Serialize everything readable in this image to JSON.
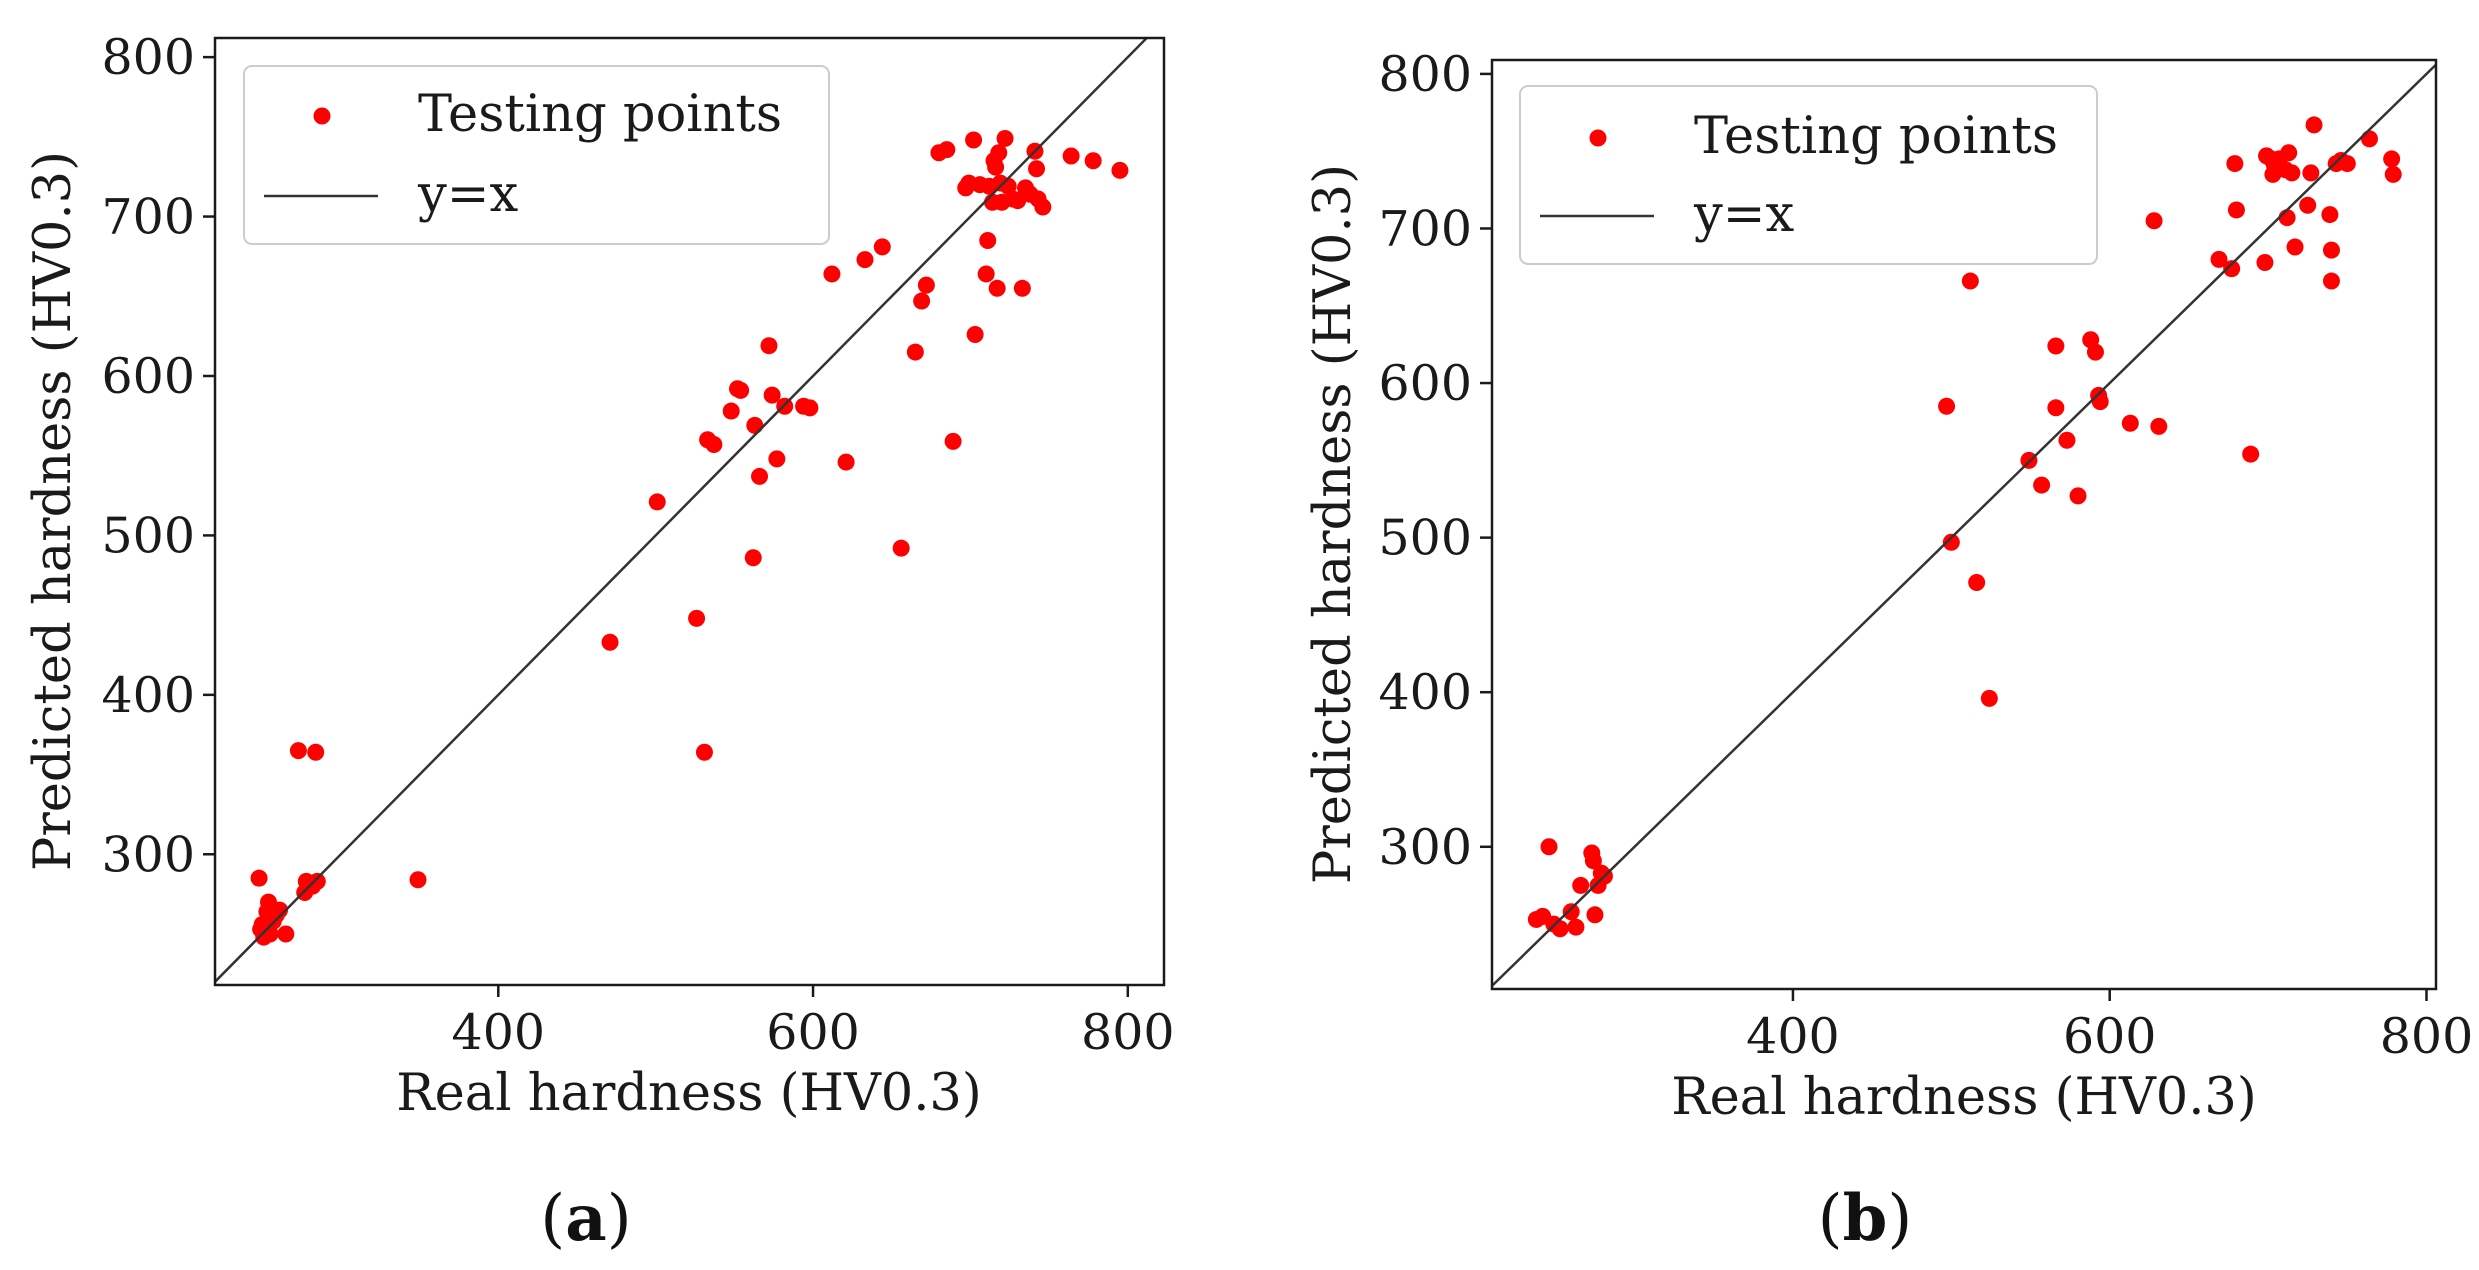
{
  "colors": {
    "points": "#ff0000",
    "line": "#333333",
    "axes": "#1a1a1a",
    "legend_border": "#cccccc"
  },
  "chart_data": [
    {
      "type": "scatter",
      "panel_label": {
        "open": "(",
        "letter": "a",
        "close": ")"
      },
      "xlabel": "Real hardness (HV0.3)",
      "ylabel": "Predicted hardness (HV0.3)",
      "xlim": [
        220,
        823
      ],
      "ylim": [
        218,
        812
      ],
      "xticks": [
        400,
        600,
        800
      ],
      "yticks": [
        300,
        400,
        500,
        600,
        700,
        800
      ],
      "grid": false,
      "legend": {
        "placement": "top-left",
        "entries": [
          "Testing points",
          "y=x"
        ]
      },
      "reference_line": "y=x",
      "points": [
        [
          248,
          285
        ],
        [
          249,
          253
        ],
        [
          250,
          256
        ],
        [
          251,
          248
        ],
        [
          253,
          264
        ],
        [
          254,
          270
        ],
        [
          255,
          250
        ],
        [
          257,
          258
        ],
        [
          259,
          262
        ],
        [
          261,
          265
        ],
        [
          265,
          250
        ],
        [
          273,
          365
        ],
        [
          277,
          276
        ],
        [
          278,
          283
        ],
        [
          282,
          280
        ],
        [
          284,
          364
        ],
        [
          285,
          283
        ],
        [
          349,
          284
        ],
        [
          471,
          433
        ],
        [
          501,
          521
        ],
        [
          526,
          448
        ],
        [
          531,
          364
        ],
        [
          533,
          560
        ],
        [
          537,
          557
        ],
        [
          548,
          578
        ],
        [
          552,
          592
        ],
        [
          554,
          591
        ],
        [
          562,
          486
        ],
        [
          563,
          569
        ],
        [
          566,
          537
        ],
        [
          572,
          619
        ],
        [
          574,
          588
        ],
        [
          577,
          548
        ],
        [
          582,
          581
        ],
        [
          594,
          581
        ],
        [
          598,
          580
        ],
        [
          621,
          546
        ],
        [
          612,
          664
        ],
        [
          633,
          673
        ],
        [
          644,
          681
        ],
        [
          656,
          492
        ],
        [
          665,
          615
        ],
        [
          669,
          647
        ],
        [
          672,
          657
        ],
        [
          680,
          740
        ],
        [
          685,
          742
        ],
        [
          689,
          559
        ],
        [
          697,
          718
        ],
        [
          699,
          721
        ],
        [
          702,
          748
        ],
        [
          703,
          626
        ],
        [
          706,
          720
        ],
        [
          710,
          664
        ],
        [
          711,
          685
        ],
        [
          712,
          719
        ],
        [
          714,
          709
        ],
        [
          715,
          735
        ],
        [
          716,
          731
        ],
        [
          717,
          655
        ],
        [
          718,
          740
        ],
        [
          719,
          721
        ],
        [
          720,
          709
        ],
        [
          722,
          749
        ],
        [
          724,
          719
        ],
        [
          727,
          711
        ],
        [
          730,
          710
        ],
        [
          733,
          655
        ],
        [
          735,
          718
        ],
        [
          738,
          714
        ],
        [
          741,
          741
        ],
        [
          742,
          730
        ],
        [
          743,
          711
        ],
        [
          746,
          706
        ],
        [
          764,
          738
        ],
        [
          778,
          735
        ],
        [
          795,
          729
        ]
      ]
    },
    {
      "type": "scatter",
      "panel_label": {
        "open": "(",
        "letter": "b",
        "close": ")"
      },
      "xlabel": "Real hardness (HV0.3)",
      "ylabel": "Predicted hardness (HV0.3)",
      "xlim": [
        210,
        806
      ],
      "ylim": [
        208,
        809
      ],
      "xticks": [
        400,
        600,
        800
      ],
      "yticks": [
        300,
        400,
        500,
        600,
        700,
        800
      ],
      "grid": false,
      "legend": {
        "placement": "top-left",
        "entries": [
          "Testing points",
          "y=x"
        ]
      },
      "reference_line": "y=x",
      "points": [
        [
          238,
          253
        ],
        [
          242,
          255
        ],
        [
          246,
          300
        ],
        [
          249,
          250
        ],
        [
          253,
          247
        ],
        [
          260,
          258
        ],
        [
          263,
          248
        ],
        [
          266,
          275
        ],
        [
          273,
          296
        ],
        [
          274,
          291
        ],
        [
          275,
          256
        ],
        [
          277,
          275
        ],
        [
          279,
          283
        ],
        [
          281,
          281
        ],
        [
          497,
          585
        ],
        [
          500,
          497
        ],
        [
          512,
          666
        ],
        [
          516,
          471
        ],
        [
          524,
          396
        ],
        [
          549,
          550
        ],
        [
          557,
          534
        ],
        [
          566,
          584
        ],
        [
          566,
          624
        ],
        [
          573,
          563
        ],
        [
          580,
          527
        ],
        [
          588,
          628
        ],
        [
          591,
          620
        ],
        [
          593,
          592
        ],
        [
          594,
          588
        ],
        [
          613,
          574
        ],
        [
          628,
          705
        ],
        [
          631,
          572
        ],
        [
          669,
          680
        ],
        [
          677,
          674
        ],
        [
          679,
          742
        ],
        [
          680,
          712
        ],
        [
          689,
          554
        ],
        [
          698,
          678
        ],
        [
          699,
          747
        ],
        [
          702,
          745
        ],
        [
          703,
          735
        ],
        [
          704,
          741
        ],
        [
          705,
          739
        ],
        [
          707,
          745
        ],
        [
          711,
          738
        ],
        [
          712,
          707
        ],
        [
          713,
          749
        ],
        [
          715,
          736
        ],
        [
          717,
          688
        ],
        [
          725,
          715
        ],
        [
          727,
          736
        ],
        [
          729,
          767
        ],
        [
          739,
          709
        ],
        [
          740,
          666
        ],
        [
          740,
          686
        ],
        [
          743,
          742
        ],
        [
          746,
          744
        ],
        [
          750,
          742
        ],
        [
          764,
          758
        ],
        [
          778,
          745
        ],
        [
          779,
          735
        ]
      ]
    }
  ]
}
